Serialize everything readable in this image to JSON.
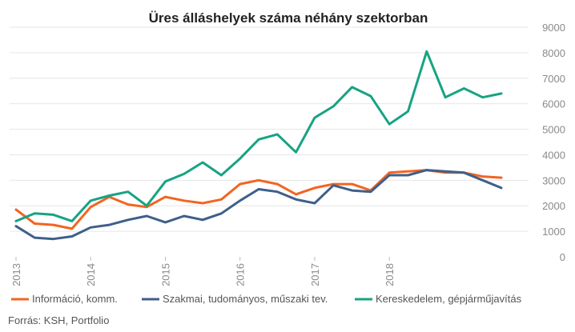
{
  "chart_data": {
    "type": "line",
    "title": "Üres álláshelyek száma néhány szektorban",
    "source": "Forrás: KSH, Portfolio",
    "ylim": [
      0,
      9000
    ],
    "yticks": [
      0,
      1000,
      2000,
      3000,
      4000,
      5000,
      6000,
      7000,
      8000,
      9000
    ],
    "grid": true,
    "legend_position": "bottom",
    "x_tick_labels": [
      "2013",
      "2014",
      "2015",
      "2016",
      "2017",
      "2018"
    ],
    "x": [
      "2013 Q1",
      "2013 Q2",
      "2013 Q3",
      "2013 Q4",
      "2014 Q1",
      "2014 Q2",
      "2014 Q3",
      "2014 Q4",
      "2015 Q1",
      "2015 Q2",
      "2015 Q3",
      "2015 Q4",
      "2016 Q1",
      "2016 Q2",
      "2016 Q3",
      "2016 Q4",
      "2017 Q1",
      "2017 Q2",
      "2017 Q3",
      "2017 Q4",
      "2018 Q1",
      "2018 Q2",
      "2018 Q3",
      "2018 Q4",
      "2019 Q1",
      "2019 Q2",
      "2019 Q3"
    ],
    "series": [
      {
        "name": "Információ, komm.",
        "color": "#f26522",
        "values": [
          1850,
          1300,
          1250,
          1100,
          1950,
          2350,
          2050,
          1950,
          2350,
          2200,
          2100,
          2250,
          2850,
          3000,
          2850,
          2450,
          2700,
          2850,
          2850,
          2600,
          3300,
          3350,
          3400,
          3300,
          3300,
          3150,
          3100
        ]
      },
      {
        "name": "Szakmai, tudományos, műszaki tev.",
        "color": "#3f5f8a",
        "values": [
          1200,
          750,
          700,
          800,
          1150,
          1250,
          1450,
          1600,
          1350,
          1600,
          1450,
          1700,
          2200,
          2650,
          2550,
          2250,
          2100,
          2800,
          2600,
          2550,
          3200,
          3200,
          3400,
          3350,
          3300,
          3000,
          2700
        ]
      },
      {
        "name": "Kereskedelem, gépjárműjavítás",
        "color": "#17a383",
        "values": [
          1400,
          1700,
          1650,
          1400,
          2200,
          2400,
          2550,
          2000,
          2950,
          3250,
          3700,
          3200,
          3850,
          4600,
          4800,
          4100,
          5450,
          5900,
          6650,
          6300,
          5200,
          5700,
          8050,
          6250,
          6600,
          6250,
          6400
        ]
      }
    ]
  }
}
